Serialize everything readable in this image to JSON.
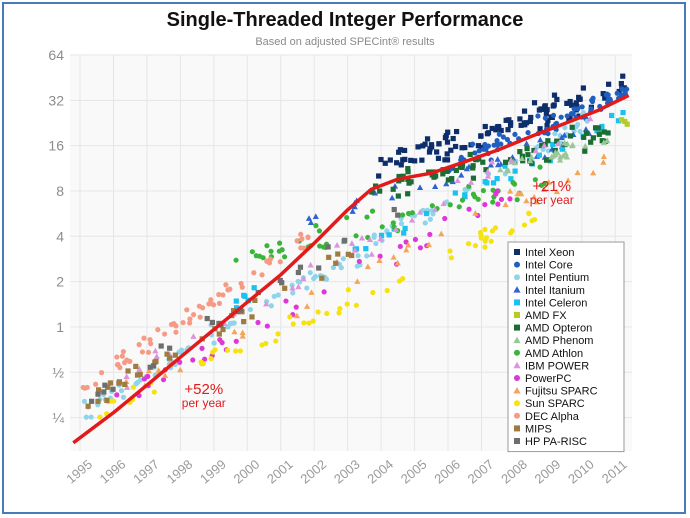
{
  "chart_data": {
    "type": "scatter",
    "title": "Single-Threaded Integer Performance",
    "subtitle": "Based on adjusted SPECint® results",
    "xlabel": "",
    "ylabel": "",
    "y_scale": "log2",
    "ylim": [
      0.15,
      64
    ],
    "xlim": [
      1994.7,
      2011.5
    ],
    "y_ticks": [
      {
        "value": 0.25,
        "label": "¼"
      },
      {
        "value": 0.5,
        "label": "½"
      },
      {
        "value": 1,
        "label": "1"
      },
      {
        "value": 2,
        "label": "2"
      },
      {
        "value": 4,
        "label": "4"
      },
      {
        "value": 8,
        "label": "8"
      },
      {
        "value": 16,
        "label": "16"
      },
      {
        "value": 32,
        "label": "32"
      },
      {
        "value": 64,
        "label": "64"
      }
    ],
    "x_ticks": [
      "1995",
      "1996",
      "1997",
      "1998",
      "1999",
      "2000",
      "2001",
      "2002",
      "2003",
      "2004",
      "2005",
      "2006",
      "2007",
      "2008",
      "2009",
      "2010",
      "2011"
    ],
    "grid": true,
    "legend_position": "lower-right",
    "series": [
      {
        "name": "Intel Xeon",
        "color": "#0d2d6b",
        "marker": "square",
        "start": 2003.8,
        "end": 2011.4,
        "center_at_start": 11,
        "center_at_end": 40,
        "spread": 0.45,
        "count": 110
      },
      {
        "name": "Intel Core",
        "color": "#1f5fbf",
        "marker": "circle",
        "start": 2006.0,
        "end": 2011.4,
        "center_at_start": 12,
        "center_at_end": 36,
        "spread": 0.35,
        "count": 70
      },
      {
        "name": "Intel Pentium",
        "color": "#8fd4ea",
        "marker": "circle",
        "start": 1995.0,
        "end": 2010.5,
        "center_at_start": 0.27,
        "center_at_end": 26,
        "spread": 0.35,
        "count": 110
      },
      {
        "name": "Intel Itanium",
        "color": "#2e63d6",
        "marker": "triangle",
        "start": 2001.5,
        "end": 2011.0,
        "center_at_start": 5,
        "center_at_end": 22,
        "spread": 0.3,
        "count": 35
      },
      {
        "name": "Intel Celeron",
        "color": "#19c2f0",
        "marker": "square",
        "start": 1998.5,
        "end": 2011.3,
        "center_at_start": 1.1,
        "center_at_end": 24,
        "spread": 0.35,
        "count": 40
      },
      {
        "name": "AMD FX",
        "color": "#b5cc22",
        "marker": "square",
        "start": 2011.0,
        "end": 2011.5,
        "center_at_start": 22,
        "center_at_end": 24,
        "spread": 0.1,
        "count": 3
      },
      {
        "name": "AMD Opteron",
        "color": "#1b6e33",
        "marker": "square",
        "start": 2003.5,
        "end": 2011.0,
        "center_at_start": 8,
        "center_at_end": 20,
        "spread": 0.4,
        "count": 70
      },
      {
        "name": "AMD Phenom",
        "color": "#9ac79a",
        "marker": "triangle",
        "start": 2007.5,
        "end": 2011.0,
        "center_at_start": 11,
        "center_at_end": 18,
        "spread": 0.25,
        "count": 25
      },
      {
        "name": "AMD Athlon",
        "color": "#3ab53a",
        "marker": "circle",
        "start": 1999.5,
        "end": 2009.0,
        "center_at_start": 2.6,
        "center_at_end": 10,
        "spread": 0.45,
        "count": 55
      },
      {
        "name": "IBM POWER",
        "color": "#dc95dc",
        "marker": "triangle",
        "start": 1995.5,
        "end": 2011.0,
        "center_at_start": 0.35,
        "center_at_end": 30,
        "spread": 0.4,
        "count": 40
      },
      {
        "name": "PowerPC",
        "color": "#e036d8",
        "marker": "circle",
        "start": 1996.0,
        "end": 2008.0,
        "center_at_start": 0.32,
        "center_at_end": 8,
        "spread": 0.4,
        "count": 40
      },
      {
        "name": "Fujitsu SPARC",
        "color": "#f5a55a",
        "marker": "triangle",
        "start": 1996.0,
        "end": 2011.0,
        "center_at_start": 0.35,
        "center_at_end": 14,
        "spread": 0.4,
        "count": 40
      },
      {
        "name": "Sun SPARC",
        "color": "#f6e20d",
        "marker": "circle",
        "start": 1995.5,
        "end": 2009.0,
        "center_at_start": 0.25,
        "center_at_end": 6,
        "spread": 0.4,
        "count": 60
      },
      {
        "name": "DEC Alpha",
        "color": "#f59b85",
        "marker": "circle",
        "start": 1995.0,
        "end": 2002.0,
        "center_at_start": 0.4,
        "center_at_end": 4,
        "spread": 0.35,
        "count": 60
      },
      {
        "name": "MIPS",
        "color": "#a07b40",
        "marker": "square",
        "start": 1995.0,
        "end": 2004.0,
        "center_at_start": 0.3,
        "center_at_end": 4,
        "spread": 0.35,
        "count": 35
      },
      {
        "name": "HP PA-RISC",
        "color": "#6e6e6e",
        "marker": "square",
        "start": 1995.0,
        "end": 2005.0,
        "center_at_start": 0.3,
        "center_at_end": 7,
        "spread": 0.3,
        "count": 25
      }
    ],
    "trend_line": {
      "color": "#e31a1c",
      "x": [
        1994.8,
        1996,
        1997,
        1998,
        1999,
        2000,
        2001,
        2002,
        2003,
        2003.7,
        2004.5,
        2005.5,
        2006.5,
        2007.5,
        2008.5,
        2009.5,
        2010.5,
        2011.4
      ],
      "y": [
        0.17,
        0.27,
        0.41,
        0.63,
        0.96,
        1.46,
        2.22,
        3.6,
        6.0,
        8.2,
        9.6,
        10.5,
        12.5,
        15.0,
        18.5,
        22.5,
        27.5,
        34.5
      ]
    },
    "annotations": [
      {
        "text": "+52%",
        "subtext": "per year",
        "x": 1998.7,
        "y": 0.36
      },
      {
        "text": "+21%",
        "subtext": "per year",
        "x": 2009.1,
        "y": 8.0
      }
    ]
  }
}
